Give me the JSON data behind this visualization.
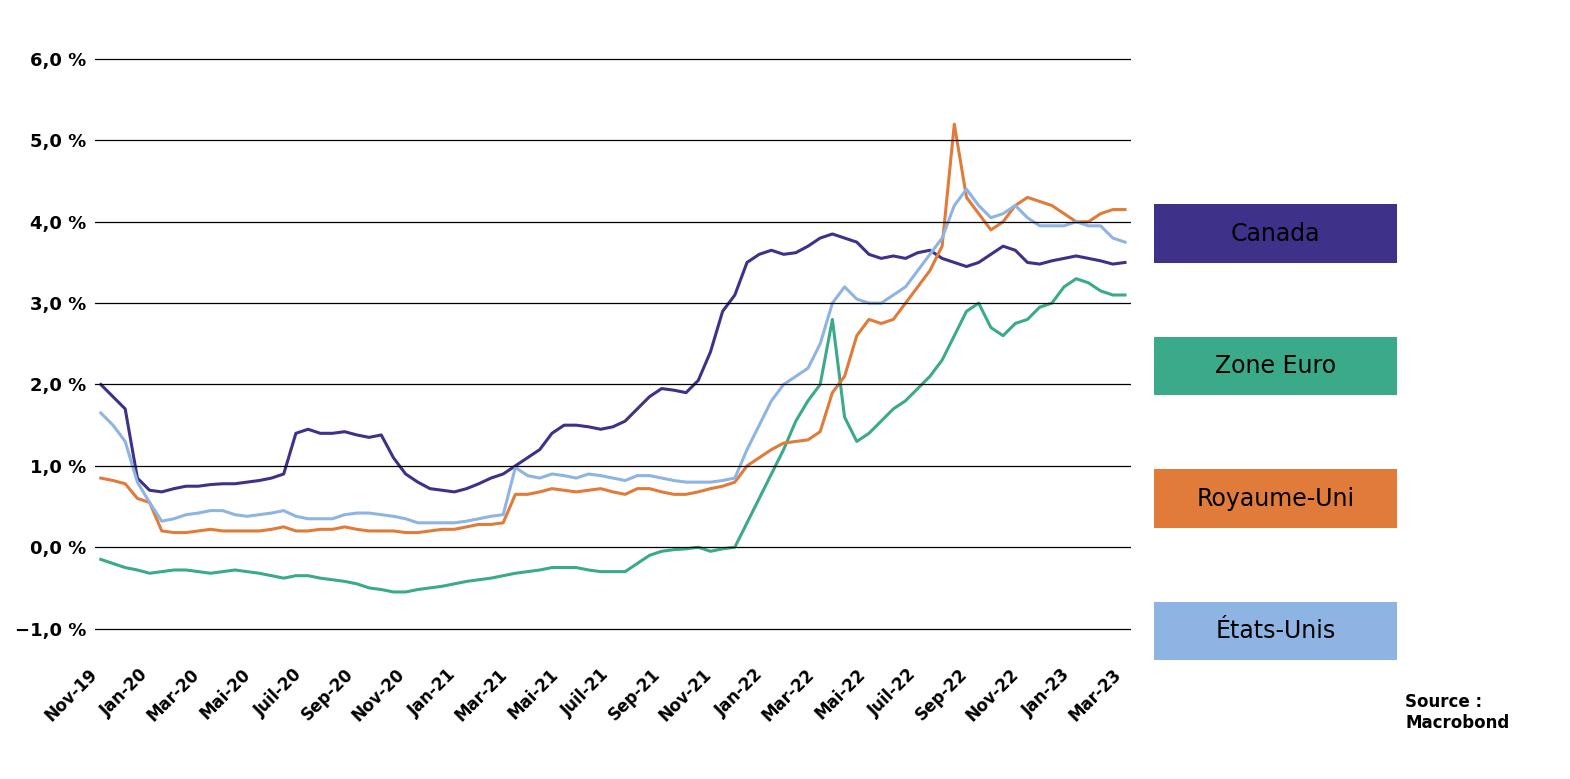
{
  "source": "Source :\nMacrobond",
  "series": {
    "Canada": {
      "color": "#3d3189",
      "linewidth": 2.2,
      "values": [
        2.0,
        1.85,
        1.7,
        0.85,
        0.7,
        0.68,
        0.72,
        0.75,
        0.75,
        0.77,
        0.78,
        0.78,
        0.8,
        0.82,
        0.85,
        0.9,
        1.4,
        1.45,
        1.4,
        1.4,
        1.42,
        1.38,
        1.35,
        1.38,
        1.1,
        0.9,
        0.8,
        0.72,
        0.7,
        0.68,
        0.72,
        0.78,
        0.85,
        0.9,
        1.0,
        1.1,
        1.2,
        1.4,
        1.5,
        1.5,
        1.48,
        1.45,
        1.48,
        1.55,
        1.7,
        1.85,
        1.95,
        1.93,
        1.9,
        2.05,
        2.4,
        2.9,
        3.1,
        3.5,
        3.6,
        3.65,
        3.6,
        3.62,
        3.7,
        3.8,
        3.85,
        3.8,
        3.75,
        3.6,
        3.55,
        3.58,
        3.55,
        3.62,
        3.65,
        3.55,
        3.5,
        3.45,
        3.5,
        3.6,
        3.7,
        3.65,
        3.5,
        3.48,
        3.52,
        3.55,
        3.58,
        3.55,
        3.52,
        3.48,
        3.5
      ]
    },
    "Zone Euro": {
      "color": "#3aaa8a",
      "linewidth": 2.2,
      "values": [
        -0.15,
        -0.2,
        -0.25,
        -0.28,
        -0.32,
        -0.3,
        -0.28,
        -0.28,
        -0.3,
        -0.32,
        -0.3,
        -0.28,
        -0.3,
        -0.32,
        -0.35,
        -0.38,
        -0.35,
        -0.35,
        -0.38,
        -0.4,
        -0.42,
        -0.45,
        -0.5,
        -0.52,
        -0.55,
        -0.55,
        -0.52,
        -0.5,
        -0.48,
        -0.45,
        -0.42,
        -0.4,
        -0.38,
        -0.35,
        -0.32,
        -0.3,
        -0.28,
        -0.25,
        -0.25,
        -0.25,
        -0.28,
        -0.3,
        -0.3,
        -0.3,
        -0.2,
        -0.1,
        -0.05,
        -0.03,
        -0.02,
        0.0,
        -0.05,
        -0.02,
        0.0,
        0.3,
        0.6,
        0.9,
        1.2,
        1.55,
        1.8,
        2.0,
        2.8,
        1.6,
        1.3,
        1.4,
        1.55,
        1.7,
        1.8,
        1.95,
        2.1,
        2.3,
        2.6,
        2.9,
        3.0,
        2.7,
        2.6,
        2.75,
        2.8,
        2.95,
        3.0,
        3.2,
        3.3,
        3.25,
        3.15,
        3.1,
        3.1
      ]
    },
    "Royaume-Uni": {
      "color": "#e07b39",
      "linewidth": 2.2,
      "values": [
        0.85,
        0.82,
        0.78,
        0.6,
        0.55,
        0.2,
        0.18,
        0.18,
        0.2,
        0.22,
        0.2,
        0.2,
        0.2,
        0.2,
        0.22,
        0.25,
        0.2,
        0.2,
        0.22,
        0.22,
        0.25,
        0.22,
        0.2,
        0.2,
        0.2,
        0.18,
        0.18,
        0.2,
        0.22,
        0.22,
        0.25,
        0.28,
        0.28,
        0.3,
        0.65,
        0.65,
        0.68,
        0.72,
        0.7,
        0.68,
        0.7,
        0.72,
        0.68,
        0.65,
        0.72,
        0.72,
        0.68,
        0.65,
        0.65,
        0.68,
        0.72,
        0.75,
        0.8,
        1.0,
        1.1,
        1.2,
        1.28,
        1.3,
        1.32,
        1.42,
        1.9,
        2.1,
        2.6,
        2.8,
        2.75,
        2.8,
        3.0,
        3.2,
        3.4,
        3.7,
        5.2,
        4.3,
        4.1,
        3.9,
        4.0,
        4.2,
        4.3,
        4.25,
        4.2,
        4.1,
        4.0,
        4.0,
        4.1,
        4.15,
        4.15
      ]
    },
    "Etats-Unis": {
      "color": "#8eb4e3",
      "linewidth": 2.2,
      "values": [
        1.65,
        1.5,
        1.3,
        0.8,
        0.55,
        0.32,
        0.35,
        0.4,
        0.42,
        0.45,
        0.45,
        0.4,
        0.38,
        0.4,
        0.42,
        0.45,
        0.38,
        0.35,
        0.35,
        0.35,
        0.4,
        0.42,
        0.42,
        0.4,
        0.38,
        0.35,
        0.3,
        0.3,
        0.3,
        0.3,
        0.32,
        0.35,
        0.38,
        0.4,
        0.98,
        0.88,
        0.85,
        0.9,
        0.88,
        0.85,
        0.9,
        0.88,
        0.85,
        0.82,
        0.88,
        0.88,
        0.85,
        0.82,
        0.8,
        0.8,
        0.8,
        0.82,
        0.85,
        1.2,
        1.5,
        1.8,
        2.0,
        2.1,
        2.2,
        2.5,
        3.0,
        3.2,
        3.05,
        3.0,
        3.0,
        3.1,
        3.2,
        3.4,
        3.6,
        3.8,
        4.2,
        4.4,
        4.2,
        4.05,
        4.1,
        4.2,
        4.05,
        3.95,
        3.95,
        3.95,
        4.0,
        3.95,
        3.95,
        3.8,
        3.75
      ]
    }
  },
  "x_axis_labels": [
    "Nov-19",
    "Jan-20",
    "Mar-20",
    "Mai-20",
    "Juil-20",
    "Sep-20",
    "Nov-20",
    "Jan-21",
    "Mar-21",
    "Mai-21",
    "Juil-21",
    "Sep-21",
    "Nov-21",
    "Jan-22",
    "Mar-22",
    "Mai-22",
    "Juil-22",
    "Sep-22",
    "Nov-22",
    "Jan-23",
    "Mar-23"
  ],
  "yticks": [
    -1.0,
    0.0,
    1.0,
    2.0,
    3.0,
    4.0,
    5.0,
    6.0
  ],
  "ylim": [
    -1.35,
    6.35
  ],
  "legend_entries": [
    {
      "label": "Canada",
      "color": "#3d3189",
      "text_color": "#000000"
    },
    {
      "label": "Zone Euro",
      "color": "#3aaa8a",
      "text_color": "#000000"
    },
    {
      "label": "Royaume-Uni",
      "color": "#e07b39",
      "text_color": "#000000"
    },
    {
      "États-Unis": null,
      "label": "États-Unis",
      "color": "#8eb4e3",
      "text_color": "#000000"
    }
  ],
  "background_color": "#ffffff"
}
